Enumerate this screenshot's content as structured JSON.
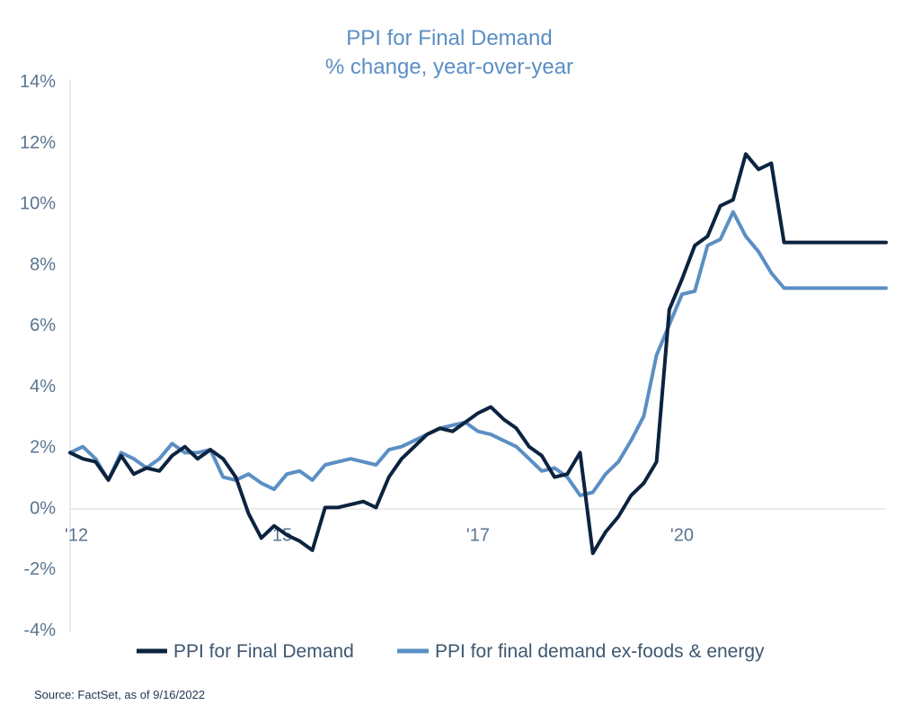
{
  "chart_data": {
    "type": "line",
    "title": "PPI for Final Demand",
    "subtitle": "% change, year-over-year",
    "source": "Source: FactSet, as of 9/16/2022",
    "ylim": [
      -4,
      14
    ],
    "yticks": [
      -4,
      -2,
      0,
      2,
      4,
      6,
      8,
      10,
      12,
      14
    ],
    "ytick_labels": [
      "-4%",
      "-2%",
      "0%",
      "2%",
      "4%",
      "6%",
      "8%",
      "10%",
      "12%",
      "14%"
    ],
    "xlim": [
      "2011-12",
      "2022-08"
    ],
    "xticks": [
      {
        "date": "2011-12",
        "label": "'12"
      },
      {
        "date": "2014-08",
        "label": "'15"
      },
      {
        "date": "2017-03",
        "label": "'17"
      },
      {
        "date": "2019-11",
        "label": "'20"
      }
    ],
    "legend_position": "bottom",
    "grid": false,
    "series": [
      {
        "name": "PPI for Final Demand",
        "color": "#0c2340",
        "x": [
          "2011-12",
          "2012-02",
          "2012-04",
          "2012-06",
          "2012-08",
          "2012-10",
          "2012-12",
          "2013-02",
          "2013-04",
          "2013-06",
          "2013-08",
          "2013-10",
          "2013-12",
          "2014-02",
          "2014-04",
          "2014-06",
          "2014-08",
          "2014-10",
          "2014-12",
          "2015-02",
          "2015-04",
          "2015-06",
          "2015-08",
          "2015-10",
          "2015-12",
          "2016-02",
          "2016-04",
          "2016-06",
          "2016-08",
          "2016-10",
          "2016-12",
          "2017-02",
          "2017-04",
          "2017-06",
          "2017-08",
          "2017-10",
          "2017-12",
          "2018-02",
          "2018-04",
          "2018-06",
          "2018-08",
          "2018-10",
          "2018-12",
          "2019-02",
          "2019-04",
          "2019-06",
          "2019-08",
          "2019-10",
          "2019-12",
          "2020-02",
          "2020-04",
          "2020-06",
          "2020-08",
          "2020-10",
          "2020-12",
          "2021-02",
          "2021-04",
          "2021-06",
          "2021-08",
          "2021-10",
          "2021-12",
          "2022-02",
          "2022-04",
          "2022-06",
          "2022-08"
        ],
        "y": [
          1.8,
          1.6,
          1.5,
          0.9,
          1.7,
          1.1,
          1.3,
          1.2,
          1.7,
          2.0,
          1.6,
          1.9,
          1.6,
          1.0,
          -0.2,
          -1.0,
          -0.6,
          -0.9,
          -1.1,
          -1.4,
          0.0,
          0.0,
          0.1,
          0.2,
          0.0,
          1.0,
          1.6,
          2.0,
          2.4,
          2.6,
          2.5,
          2.8,
          3.1,
          3.3,
          2.9,
          2.6,
          2.0,
          1.7,
          1.0,
          1.1,
          1.8,
          -1.5,
          -0.8,
          -0.3,
          0.4,
          0.8,
          1.5,
          6.5,
          7.5,
          8.6,
          8.9,
          9.9,
          10.1,
          11.6,
          11.1,
          11.3,
          8.7,
          8.7,
          8.7,
          8.7,
          8.7,
          8.7,
          8.7,
          8.7,
          8.7
        ]
      },
      {
        "name": "PPI for final demand ex-foods & energy",
        "color": "#5b8fc4",
        "x": [
          "2011-12",
          "2012-02",
          "2012-04",
          "2012-06",
          "2012-08",
          "2012-10",
          "2012-12",
          "2013-02",
          "2013-04",
          "2013-06",
          "2013-08",
          "2013-10",
          "2013-12",
          "2014-02",
          "2014-04",
          "2014-06",
          "2014-08",
          "2014-10",
          "2014-12",
          "2015-02",
          "2015-04",
          "2015-06",
          "2015-08",
          "2015-10",
          "2015-12",
          "2016-02",
          "2016-04",
          "2016-06",
          "2016-08",
          "2016-10",
          "2016-12",
          "2017-02",
          "2017-04",
          "2017-06",
          "2017-08",
          "2017-10",
          "2017-12",
          "2018-02",
          "2018-04",
          "2018-06",
          "2018-08",
          "2018-10",
          "2018-12",
          "2019-02",
          "2019-04",
          "2019-06",
          "2019-08",
          "2019-10",
          "2019-12",
          "2020-02",
          "2020-04",
          "2020-06",
          "2020-08",
          "2020-10",
          "2020-12",
          "2021-02",
          "2021-04",
          "2021-06",
          "2021-08",
          "2021-10",
          "2021-12",
          "2022-02",
          "2022-04",
          "2022-06",
          "2022-08"
        ],
        "y": [
          1.8,
          2.0,
          1.6,
          0.9,
          1.8,
          1.6,
          1.3,
          1.6,
          2.1,
          1.8,
          1.8,
          1.9,
          1.0,
          0.9,
          1.1,
          0.8,
          0.6,
          1.1,
          1.2,
          0.9,
          1.4,
          1.5,
          1.6,
          1.5,
          1.4,
          1.9,
          2.0,
          2.2,
          2.4,
          2.6,
          2.7,
          2.8,
          2.5,
          2.4,
          2.2,
          2.0,
          1.6,
          1.2,
          1.3,
          1.0,
          0.4,
          0.5,
          1.1,
          1.5,
          2.2,
          3.0,
          5.0,
          6.0,
          7.0,
          7.1,
          8.6,
          8.8,
          9.7,
          8.9,
          8.4,
          7.7,
          7.2,
          7.2,
          7.2,
          7.2,
          7.2,
          7.2,
          7.2,
          7.2,
          7.2
        ]
      }
    ]
  }
}
